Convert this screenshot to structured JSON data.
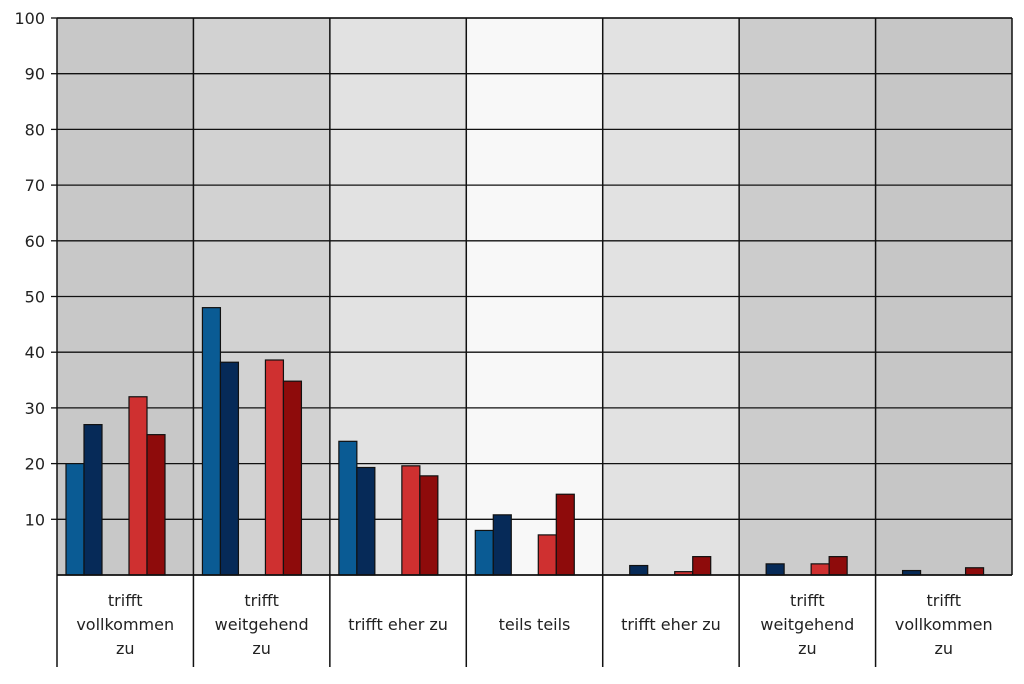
{
  "chart_data": {
    "type": "bar",
    "title": "",
    "xlabel": "",
    "ylabel": "",
    "ylim": [
      0,
      100
    ],
    "y_ticks": [
      "10",
      "20",
      "30",
      "40",
      "50",
      "60",
      "70",
      "80",
      "90",
      "100"
    ],
    "grid": true,
    "categories": [
      [
        "trifft",
        "vollkommen",
        "zu"
      ],
      [
        "trifft",
        "weitgehend",
        "zu"
      ],
      [
        "trifft eher zu"
      ],
      [
        "teils teils"
      ],
      [
        "trifft eher zu"
      ],
      [
        "trifft",
        "weitgehend",
        "zu"
      ],
      [
        "trifft",
        "vollkommen",
        "zu"
      ]
    ],
    "category_backgrounds": [
      "#c8c8c8",
      "#d2d2d2",
      "#e2e2e2",
      "#f8f8f8",
      "#e2e2e2",
      "#cccccc",
      "#c6c6c6"
    ],
    "series": [
      {
        "color": "#0a5b94",
        "values": [
          20,
          48,
          24,
          8,
          0,
          0,
          0
        ]
      },
      {
        "color": "#062a58",
        "values": [
          27,
          38.2,
          19.3,
          10.8,
          1.7,
          2,
          0.8
        ]
      },
      {
        "color": "#cf3030",
        "values": [
          32,
          38.6,
          19.6,
          7.2,
          0.6,
          2,
          0
        ]
      },
      {
        "color": "#8e0b0b",
        "values": [
          25.2,
          34.8,
          17.8,
          14.5,
          3.3,
          3.3,
          1.3
        ]
      }
    ]
  }
}
